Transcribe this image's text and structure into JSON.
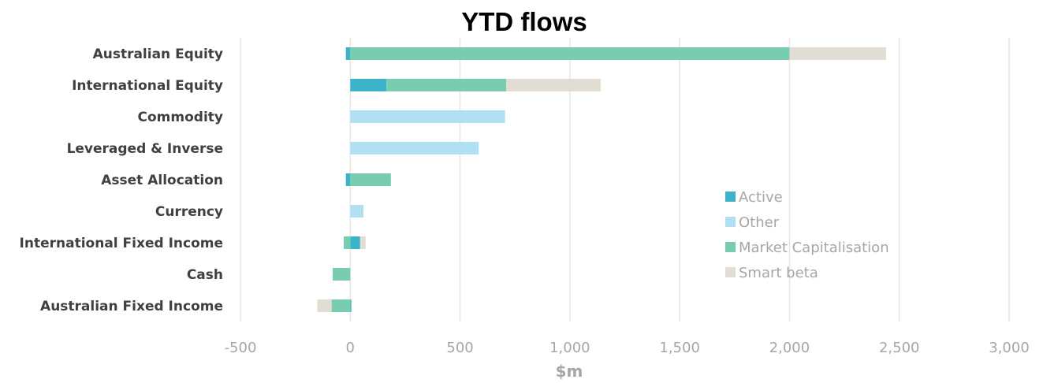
{
  "chart_data": {
    "type": "bar",
    "orientation": "horizontal",
    "stacked": true,
    "title": "YTD flows",
    "xlabel": "$m",
    "ylabel": "",
    "xlim": [
      -500,
      3000
    ],
    "xticks": [
      -500,
      0,
      500,
      1000,
      1500,
      2000,
      2500,
      3000
    ],
    "xtick_labels": [
      "-500",
      "0",
      "500",
      "1,000",
      "1,500",
      "2,000",
      "2,500",
      "3,000"
    ],
    "grid": "vertical",
    "legend_position": "right",
    "categories": [
      "Australian Equity",
      "International Equity",
      "Commodity",
      "Leveraged & Inverse",
      "Asset Allocation",
      "Currency",
      "International Fixed Income",
      "Cash",
      "Australian Fixed Income"
    ],
    "series": [
      {
        "name": "Active",
        "color": "#3bb3c9",
        "values": [
          -20,
          165,
          0,
          0,
          -20,
          0,
          45,
          0,
          5
        ]
      },
      {
        "name": "Other",
        "color": "#b0e0f2",
        "values": [
          0,
          0,
          705,
          585,
          0,
          60,
          0,
          0,
          0
        ]
      },
      {
        "name": "Market Capitalisation",
        "color": "#78cdb0",
        "values": [
          2000,
          545,
          0,
          0,
          185,
          0,
          -30,
          -80,
          -85
        ]
      },
      {
        "name": "Smart beta",
        "color": "#e2ddd3",
        "values": [
          440,
          430,
          0,
          0,
          0,
          0,
          25,
          0,
          -65
        ]
      }
    ]
  }
}
